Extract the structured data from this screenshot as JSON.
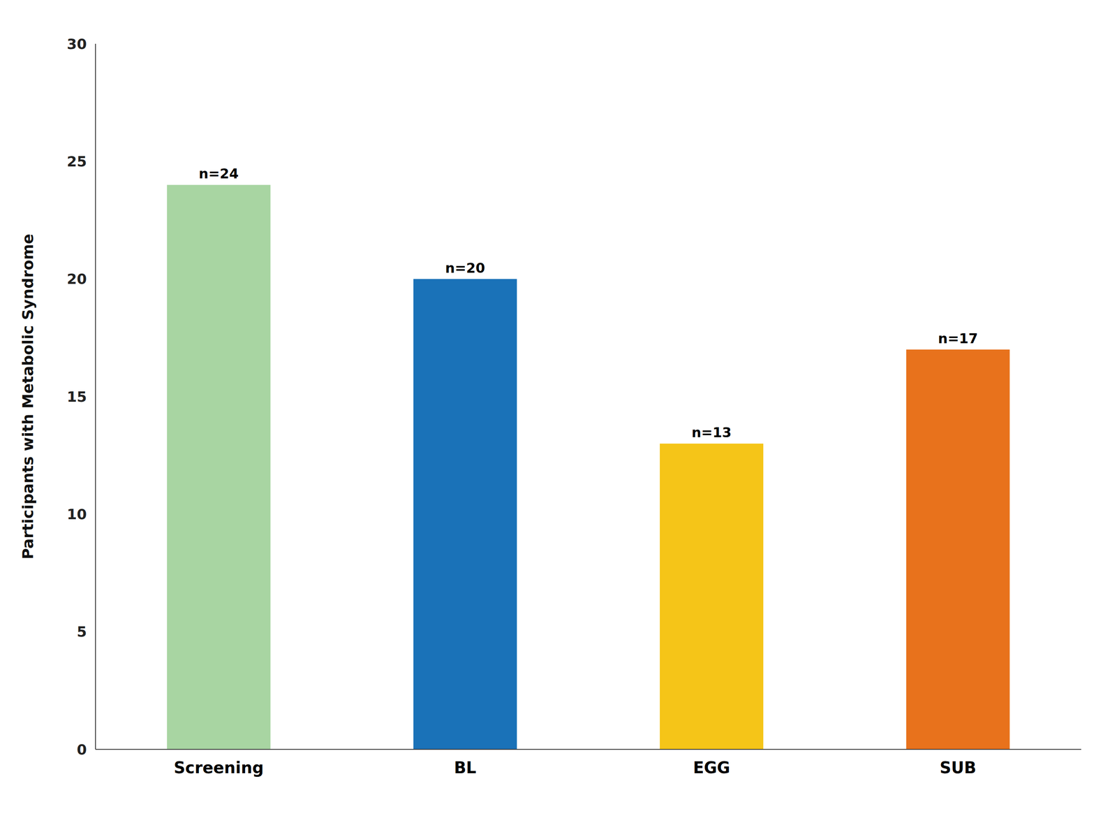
{
  "chart_data": {
    "type": "bar",
    "ylabel": "Participants with Metabolic Syndrome",
    "categories": [
      "Screening",
      "BL",
      "EGG",
      "SUB"
    ],
    "values": [
      24,
      20,
      13,
      17
    ],
    "value_labels": [
      "n=24",
      "n=20",
      "n=13",
      "n=17"
    ],
    "data_labels": true,
    "colors": [
      "#a8d5a2",
      "#1a72b8",
      "#f5c518",
      "#e8721c"
    ],
    "ylim": [
      0,
      30
    ],
    "yticks": [
      0,
      5,
      10,
      15,
      20,
      25,
      30
    ],
    "grid": false
  }
}
